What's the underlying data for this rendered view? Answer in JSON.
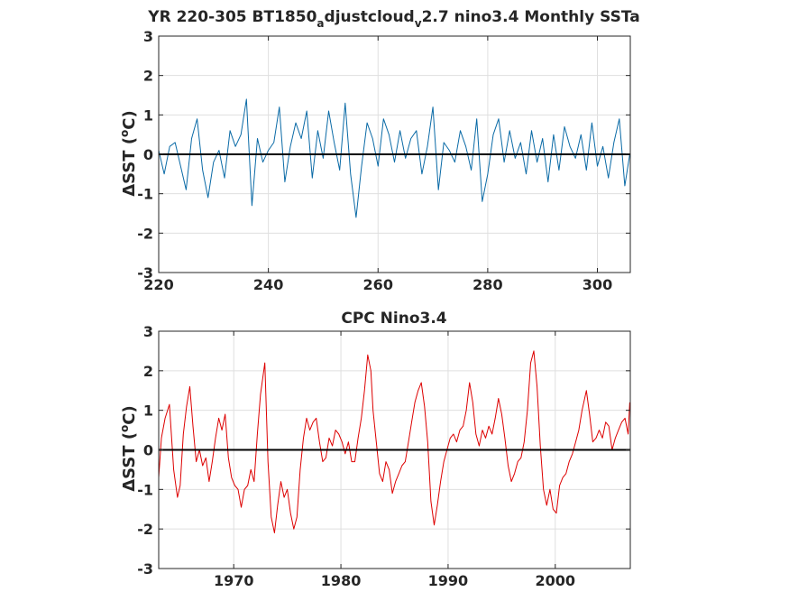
{
  "chart_data": [
    {
      "type": "line",
      "title_parts": [
        "YR 220-305 BT1850",
        "a",
        "djustcloud",
        "v",
        "2.7 nino3.4 Monthly SSTa"
      ],
      "xlabel": "",
      "ylabel": "ΔSST (oC)",
      "ylabel_parts": [
        "ΔSST (",
        "o",
        "C)"
      ],
      "xlim": [
        220,
        306
      ],
      "ylim": [
        -3,
        3
      ],
      "xticks": [
        220,
        240,
        260,
        280,
        300
      ],
      "yticks": [
        -3,
        -2,
        -1,
        0,
        1,
        2,
        3
      ],
      "xtick_labels": [
        "220",
        "240",
        "260",
        "280",
        "300"
      ],
      "ytick_labels": [
        "-3",
        "-2",
        "-1",
        "0",
        "1",
        "2",
        "3"
      ],
      "grid": true,
      "zero_line": true,
      "series": [
        {
          "color": "#0a6aa6",
          "x": [
            220.0,
            221.0,
            222.0,
            223.0,
            224.0,
            225.0,
            226.0,
            227.0,
            228.0,
            229.0,
            230.0,
            231.0,
            232.0,
            233.0,
            234.0,
            235.0,
            236.0,
            237.0,
            238.0,
            239.0,
            240.0,
            241.0,
            242.0,
            243.0,
            244.0,
            245.0,
            246.0,
            247.0,
            248.0,
            249.0,
            250.0,
            251.0,
            252.0,
            253.0,
            254.0,
            255.0,
            256.0,
            257.0,
            258.0,
            259.0,
            260.0,
            261.0,
            262.0,
            263.0,
            264.0,
            265.0,
            266.0,
            267.0,
            268.0,
            269.0,
            270.0,
            271.0,
            272.0,
            273.0,
            274.0,
            275.0,
            276.0,
            277.0,
            278.0,
            279.0,
            280.0,
            281.0,
            282.0,
            283.0,
            284.0,
            285.0,
            286.0,
            287.0,
            288.0,
            289.0,
            290.0,
            291.0,
            292.0,
            293.0,
            294.0,
            295.0,
            296.0,
            297.0,
            298.0,
            299.0,
            300.0,
            301.0,
            302.0,
            303.0,
            304.0,
            305.0,
            305.9
          ],
          "y": [
            0.1,
            -0.5,
            0.2,
            0.3,
            -0.3,
            -0.9,
            0.4,
            0.9,
            -0.4,
            -1.1,
            -0.2,
            0.1,
            -0.6,
            0.6,
            0.2,
            0.5,
            1.4,
            -1.3,
            0.4,
            -0.2,
            0.1,
            0.3,
            1.2,
            -0.7,
            0.2,
            0.8,
            0.4,
            1.1,
            -0.6,
            0.6,
            -0.1,
            1.1,
            0.3,
            -0.4,
            1.3,
            -0.5,
            -1.6,
            -0.3,
            0.8,
            0.4,
            -0.3,
            0.9,
            0.5,
            -0.2,
            0.6,
            -0.1,
            0.4,
            0.6,
            -0.5,
            0.2,
            1.2,
            -0.9,
            0.3,
            0.1,
            -0.2,
            0.6,
            0.2,
            -0.4,
            0.9,
            -1.2,
            -0.5,
            0.5,
            0.9,
            -0.2,
            0.6,
            -0.1,
            0.3,
            -0.5,
            0.6,
            -0.2,
            0.4,
            -0.7,
            0.5,
            -0.4,
            0.7,
            0.2,
            -0.1,
            0.5,
            -0.4,
            0.8,
            -0.3,
            0.2,
            -0.6,
            0.3,
            0.9,
            -0.8,
            0.0
          ]
        }
      ]
    },
    {
      "type": "line",
      "title": "CPC Nino3.4",
      "xlabel": "",
      "ylabel": "ΔSST (oC)",
      "ylabel_parts": [
        "ΔSST (",
        "o",
        "C)"
      ],
      "xlim": [
        1963,
        2007
      ],
      "ylim": [
        -3,
        3
      ],
      "xticks": [
        1970,
        1980,
        1990,
        2000
      ],
      "yticks": [
        -3,
        -2,
        -1,
        0,
        1,
        2,
        3
      ],
      "xtick_labels": [
        "1970",
        "1980",
        "1990",
        "2000"
      ],
      "ytick_labels": [
        "-3",
        "-2",
        "-1",
        "0",
        "1",
        "2",
        "3"
      ],
      "grid": true,
      "zero_line": true,
      "series": [
        {
          "color": "#dd0000",
          "x": [
            1963.0,
            1963.25,
            1963.6,
            1964.0,
            1964.4,
            1964.75,
            1965.0,
            1965.3,
            1965.6,
            1965.9,
            1966.2,
            1966.5,
            1966.8,
            1967.1,
            1967.4,
            1967.7,
            1968.0,
            1968.3,
            1968.6,
            1968.9,
            1969.2,
            1969.5,
            1969.8,
            1970.1,
            1970.4,
            1970.7,
            1971.0,
            1971.3,
            1971.6,
            1971.9,
            1972.2,
            1972.5,
            1972.9,
            1973.2,
            1973.5,
            1973.8,
            1974.1,
            1974.4,
            1974.7,
            1975.0,
            1975.3,
            1975.6,
            1975.9,
            1976.2,
            1976.5,
            1976.8,
            1977.1,
            1977.4,
            1977.7,
            1978.0,
            1978.3,
            1978.6,
            1978.9,
            1979.2,
            1979.5,
            1979.8,
            1980.1,
            1980.4,
            1980.7,
            1981.0,
            1981.3,
            1981.6,
            1981.9,
            1982.2,
            1982.5,
            1982.8,
            1983.0,
            1983.3,
            1983.6,
            1983.9,
            1984.2,
            1984.5,
            1984.8,
            1985.1,
            1985.4,
            1985.7,
            1986.0,
            1986.3,
            1986.6,
            1986.9,
            1987.2,
            1987.5,
            1987.8,
            1988.1,
            1988.4,
            1988.7,
            1989.0,
            1989.3,
            1989.6,
            1989.9,
            1990.2,
            1990.5,
            1990.8,
            1991.1,
            1991.4,
            1991.7,
            1992.0,
            1992.3,
            1992.6,
            1992.9,
            1993.2,
            1993.5,
            1993.8,
            1994.1,
            1994.4,
            1994.7,
            1995.0,
            1995.3,
            1995.6,
            1995.9,
            1996.2,
            1996.5,
            1996.8,
            1997.1,
            1997.4,
            1997.7,
            1998.0,
            1998.3,
            1998.6,
            1998.9,
            1999.2,
            1999.5,
            1999.8,
            2000.1,
            2000.4,
            2000.7,
            2001.0,
            2001.3,
            2001.6,
            2001.9,
            2002.2,
            2002.5,
            2002.9,
            2003.2,
            2003.5,
            2003.8,
            2004.1,
            2004.4,
            2004.7,
            2005.0,
            2005.3,
            2005.6,
            2005.9,
            2006.2,
            2006.5,
            2006.8,
            2006.95
          ],
          "y": [
            -0.7,
            0.3,
            0.8,
            1.15,
            -0.5,
            -1.2,
            -0.9,
            0.4,
            1.1,
            1.6,
            0.6,
            -0.3,
            0.0,
            -0.4,
            -0.2,
            -0.8,
            -0.3,
            0.3,
            0.8,
            0.5,
            0.9,
            -0.2,
            -0.7,
            -0.9,
            -1.0,
            -1.45,
            -1.0,
            -0.9,
            -0.5,
            -0.8,
            0.4,
            1.4,
            2.2,
            -0.3,
            -1.7,
            -2.1,
            -1.4,
            -0.8,
            -1.2,
            -1.0,
            -1.6,
            -2.0,
            -1.7,
            -0.5,
            0.3,
            0.8,
            0.5,
            0.7,
            0.8,
            0.2,
            -0.3,
            -0.2,
            0.3,
            0.1,
            0.5,
            0.4,
            0.2,
            -0.1,
            0.2,
            -0.3,
            -0.3,
            0.3,
            0.8,
            1.5,
            2.4,
            2.0,
            1.0,
            0.2,
            -0.6,
            -0.8,
            -0.3,
            -0.5,
            -1.1,
            -0.8,
            -0.6,
            -0.4,
            -0.3,
            0.2,
            0.7,
            1.2,
            1.5,
            1.7,
            1.1,
            0.2,
            -1.3,
            -1.9,
            -1.4,
            -0.8,
            -0.3,
            0.0,
            0.3,
            0.4,
            0.2,
            0.5,
            0.6,
            1.0,
            1.7,
            1.2,
            0.4,
            0.1,
            0.5,
            0.3,
            0.6,
            0.4,
            0.8,
            1.3,
            0.9,
            0.3,
            -0.4,
            -0.8,
            -0.6,
            -0.3,
            -0.2,
            0.2,
            1.0,
            2.2,
            2.5,
            1.6,
            0.1,
            -1.0,
            -1.4,
            -1.0,
            -1.5,
            -1.6,
            -0.9,
            -0.7,
            -0.6,
            -0.3,
            -0.1,
            0.2,
            0.5,
            1.0,
            1.5,
            0.9,
            0.2,
            0.3,
            0.5,
            0.3,
            0.7,
            0.6,
            0.0,
            0.3,
            0.5,
            0.7,
            0.8,
            0.4,
            1.2
          ]
        }
      ]
    }
  ]
}
